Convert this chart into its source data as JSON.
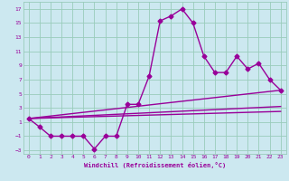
{
  "xlabel": "Windchill (Refroidissement éolien,°C)",
  "background_color": "#cce8f0",
  "grid_color": "#99ccbb",
  "line_color": "#990099",
  "xlim": [
    -0.5,
    23.5
  ],
  "ylim": [
    -3.5,
    18.0
  ],
  "xticks": [
    0,
    1,
    2,
    3,
    4,
    5,
    6,
    7,
    8,
    9,
    10,
    11,
    12,
    13,
    14,
    15,
    16,
    17,
    18,
    19,
    20,
    21,
    22,
    23
  ],
  "yticks": [
    -3,
    -1,
    1,
    3,
    5,
    7,
    9,
    11,
    13,
    15,
    17
  ],
  "line1_x": [
    0,
    1,
    2,
    3,
    4,
    5,
    6,
    7,
    8,
    9,
    10,
    11,
    12,
    13,
    14,
    15,
    16,
    17,
    18,
    19,
    20,
    21,
    22,
    23
  ],
  "line1_y": [
    1.5,
    0.3,
    -1.0,
    -1.0,
    -1.0,
    -1.0,
    -2.8,
    -1.0,
    -1.0,
    3.5,
    3.5,
    7.5,
    15.3,
    16.0,
    17.0,
    15.0,
    10.3,
    8.0,
    8.0,
    10.3,
    8.5,
    9.3,
    7.0,
    5.5
  ],
  "line2_x": [
    0,
    23
  ],
  "line2_y": [
    1.5,
    5.5
  ],
  "line3_x": [
    0,
    23
  ],
  "line3_y": [
    1.5,
    3.2
  ],
  "line4_x": [
    0,
    23
  ],
  "line4_y": [
    1.5,
    2.5
  ],
  "marker": "D",
  "markersize": 2.5,
  "linewidth": 1.0
}
